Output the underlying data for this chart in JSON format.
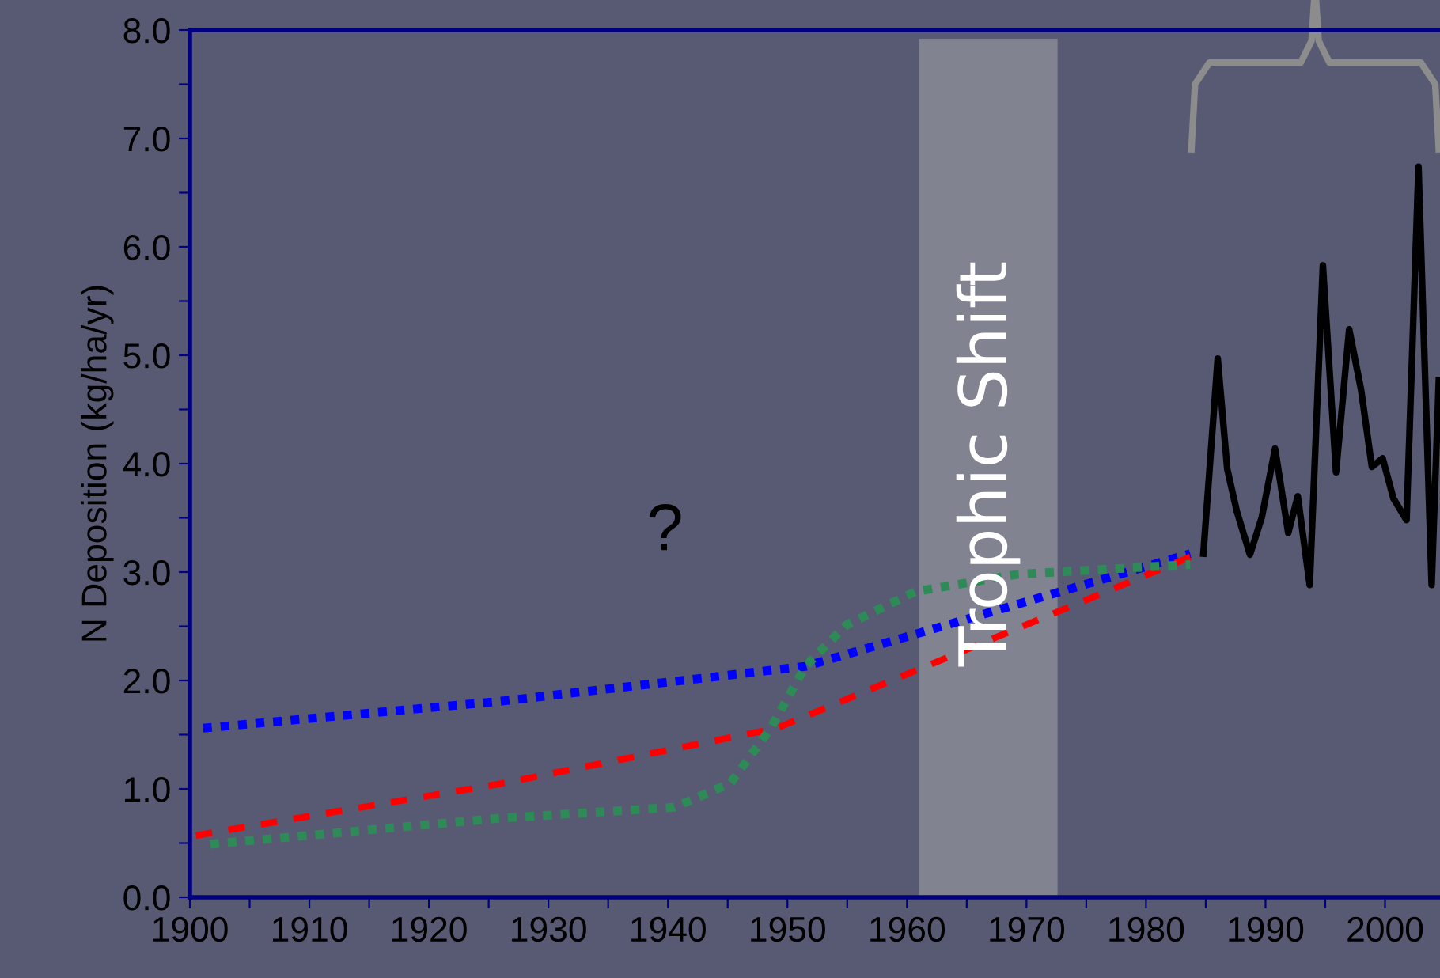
{
  "chart_data": {
    "type": "line",
    "ylabel": "N Deposition (kg/ha/yr)",
    "xlim": [
      1900,
      2004.6
    ],
    "ylim": [
      0,
      8
    ],
    "xticks": [
      1900,
      {
        "value": 1905,
        "label": null
      },
      1910,
      {
        "value": 1915,
        "label": null
      },
      1920,
      {
        "value": 1925,
        "label": null
      },
      1930,
      {
        "value": 1935,
        "label": null
      },
      1940,
      {
        "value": 1945,
        "label": null
      },
      1950,
      {
        "value": 1955,
        "label": null
      },
      1960,
      {
        "value": 1965,
        "label": null
      },
      1970,
      {
        "value": 1975,
        "label": null
      },
      1980,
      {
        "value": 1985,
        "label": null
      },
      1990,
      {
        "value": 1995,
        "label": null
      },
      2000
    ],
    "yticks": [
      {
        "value": 0,
        "label": "0.0"
      },
      {
        "value": 0.5,
        "label": null
      },
      {
        "value": 1,
        "label": "1.0"
      },
      {
        "value": 1.5,
        "label": null
      },
      {
        "value": 2,
        "label": "2.0"
      },
      {
        "value": 2.5,
        "label": null
      },
      {
        "value": 3,
        "label": "3.0"
      },
      {
        "value": 3.5,
        "label": null
      },
      {
        "value": 4,
        "label": "4.0"
      },
      {
        "value": 4.5,
        "label": null
      },
      {
        "value": 5,
        "label": "5.0"
      },
      {
        "value": 5.5,
        "label": null
      },
      {
        "value": 6,
        "label": "6.0"
      },
      {
        "value": 6.5,
        "label": null
      },
      {
        "value": 7,
        "label": "7.0"
      },
      {
        "value": 7.5,
        "label": null
      },
      {
        "value": 8,
        "label": "8.0"
      }
    ],
    "grid": false,
    "legend": false,
    "bands": [
      {
        "axis": "x",
        "from": 1961,
        "to": 1972.6,
        "label": "Trophic Shift",
        "color": "#8a8b96"
      }
    ],
    "annotations": [
      "?"
    ],
    "series": [
      {
        "color": "#0000ff",
        "line_style": "dotted",
        "x": [
          1901.1,
          1926.1,
          1951.5,
          1983.7
        ],
        "values": [
          1.56,
          1.81,
          2.13,
          3.17
        ]
      },
      {
        "color": "#ff0000",
        "line_style": "dashed",
        "x": [
          1900.5,
          1926.1,
          1949.1,
          1983.7
        ],
        "values": [
          0.57,
          1.05,
          1.56,
          3.14
        ]
      },
      {
        "color": "#2e8b57",
        "line_style": "dotted",
        "x": [
          1901.7,
          1926,
          1940.5,
          1945.2,
          1948.6,
          1951.5,
          1954.9,
          1960.7,
          1969.3,
          1983.7
        ],
        "values": [
          0.49,
          0.73,
          0.83,
          1.05,
          1.56,
          2.13,
          2.51,
          2.82,
          2.98,
          3.07
        ]
      },
      {
        "color": "#000000",
        "line_style": "solid",
        "x": [
          1984.8,
          1986.0,
          1986.8,
          1987.6,
          1988.7,
          1989.7,
          1990.8,
          1991.9,
          1992.7,
          1993.7,
          1994.8,
          1995.9,
          1997.0,
          1998.0,
          1998.9,
          1999.8,
          2000.7,
          2001.8,
          2002.8,
          2003.9,
          2004.5
        ],
        "values": [
          3.17,
          4.97,
          3.95,
          3.56,
          3.16,
          3.51,
          4.14,
          3.36,
          3.7,
          2.88,
          5.83,
          3.92,
          5.24,
          4.68,
          3.97,
          4.05,
          3.68,
          3.48,
          6.74,
          2.88,
          4.77
        ]
      }
    ]
  }
}
